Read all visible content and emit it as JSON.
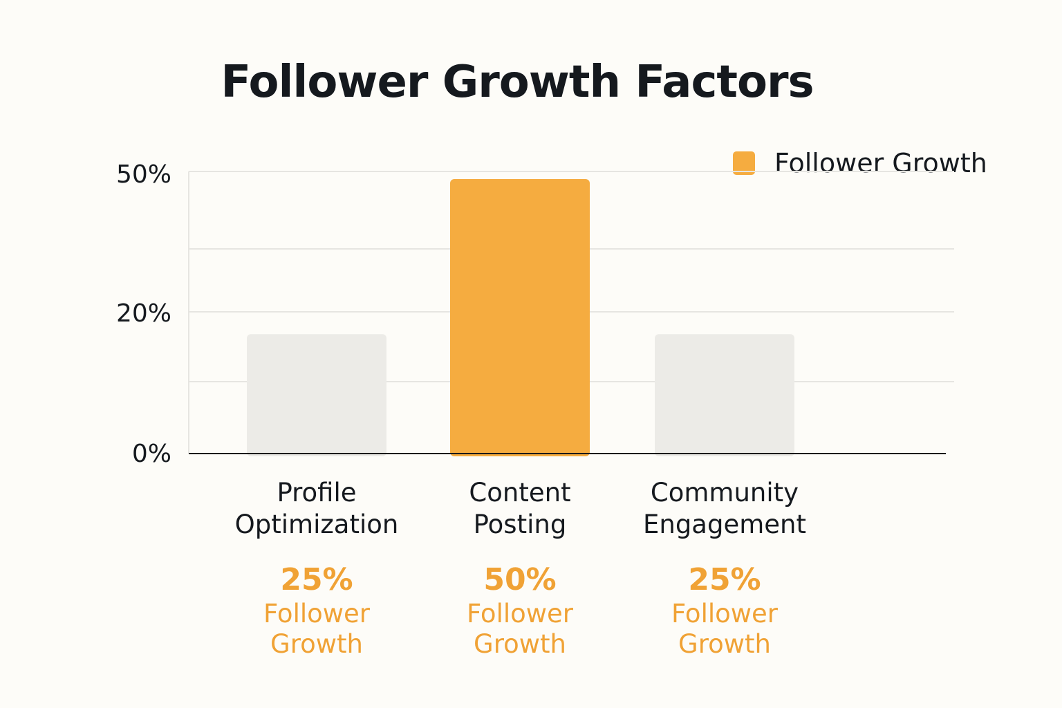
{
  "chart_data": {
    "type": "bar",
    "title": "Follower Growth Factors",
    "categories": [
      "Profile Optimization",
      "Content Posting",
      "Community Engagement"
    ],
    "values": [
      25,
      50,
      25
    ],
    "value_labels": [
      "25%",
      "50%",
      "25%"
    ],
    "value_caption": "Follower Growth",
    "highlight_index": 1,
    "series": [
      {
        "name": "Follower Growth",
        "values": [
          25,
          50,
          25
        ]
      }
    ],
    "ytick_labels": [
      "50%",
      "20%",
      "0%"
    ],
    "ylim": [
      0,
      50
    ],
    "xlabel": "",
    "ylabel": "",
    "grid": true,
    "legend": "top-right",
    "colors": {
      "highlight": "#f5ac40",
      "muted": "#ecebe7",
      "label": "#f0a235"
    }
  }
}
